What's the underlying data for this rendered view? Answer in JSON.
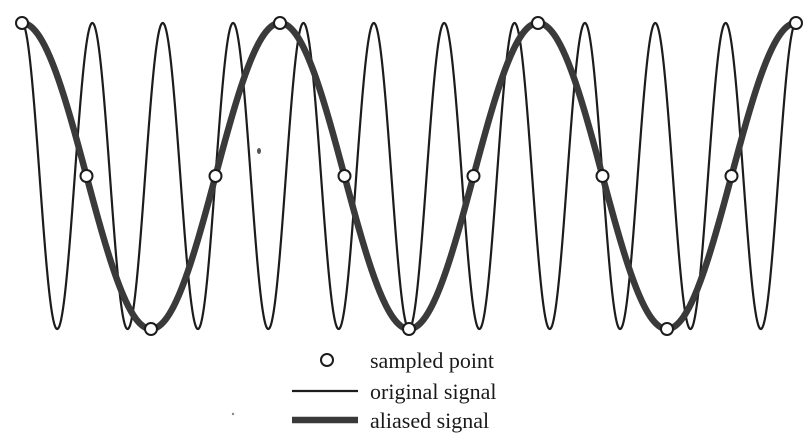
{
  "diagram": {
    "type": "signal-aliasing",
    "colors": {
      "background": "#ffffff",
      "original_signal": "#1c1c1c",
      "aliased_signal": "#3a3a3a",
      "sample_point_fill": "#ffffff",
      "sample_point_stroke": "#1c1c1c"
    },
    "original_signal": {
      "cycles": 11.0
    },
    "aliased_signal": {
      "cycles": 3.0
    },
    "samples": {
      "count": 13,
      "interval_index_step": 1
    },
    "legend": {
      "items": [
        {
          "key": "sampled_point",
          "label": "sampled point",
          "symbol": "circle-icon"
        },
        {
          "key": "original_signal",
          "label": "original signal",
          "symbol": "thin-line"
        },
        {
          "key": "aliased_signal",
          "label": "aliased signal",
          "symbol": "thick-line"
        }
      ]
    }
  }
}
